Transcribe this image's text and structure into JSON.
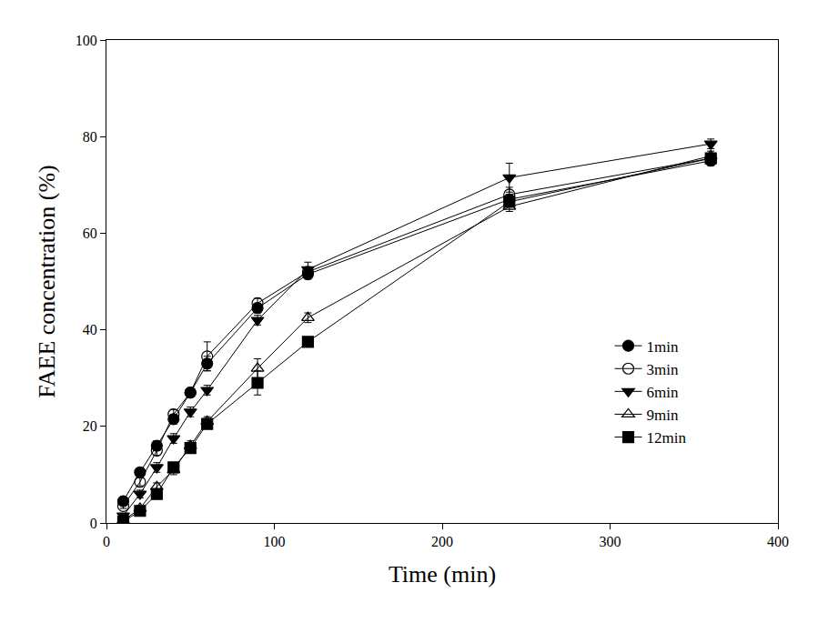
{
  "chart_data": {
    "type": "line",
    "x_label": "Time (min)",
    "y_label": "FAEE concentration (%)",
    "x": [
      10,
      20,
      30,
      40,
      50,
      60,
      90,
      120,
      240,
      360
    ],
    "xlim": [
      0,
      400
    ],
    "xticks": [
      0,
      100,
      200,
      300,
      400
    ],
    "ylim": [
      0,
      100
    ],
    "yticks": [
      0,
      20,
      40,
      60,
      80,
      100
    ],
    "grid": false,
    "legend": "lower right",
    "series": [
      {
        "name": "1min",
        "color": "#000000",
        "marker": "circle",
        "line_style": "solid",
        "values": [
          4.5,
          10.5,
          16,
          21.5,
          27,
          33,
          44.5,
          51.5,
          67,
          75
        ],
        "errors": [
          0.5,
          0.8,
          1,
          1,
          0.8,
          1.5,
          1,
          1,
          1,
          1
        ]
      },
      {
        "name": "3min",
        "color": "#000000",
        "marker": "circle-open",
        "line_style": "solid",
        "values": [
          3.5,
          8.5,
          15,
          22.5,
          27,
          34.5,
          45.5,
          52,
          68,
          75.5
        ],
        "errors": [
          0.5,
          0.8,
          1,
          1,
          0.8,
          3,
          1,
          1,
          1.5,
          1
        ]
      },
      {
        "name": "6min",
        "color": "#000000",
        "marker": "triangle-down",
        "line_style": "solid",
        "values": [
          1.5,
          6,
          11.5,
          17.5,
          23,
          27.5,
          42,
          52.5,
          71.5,
          78.5
        ],
        "errors": [
          0.5,
          0.8,
          1,
          1,
          1,
          1,
          1,
          1.5,
          3,
          1
        ]
      },
      {
        "name": "9min",
        "color": "#000000",
        "marker": "triangle-up-open",
        "line_style": "solid",
        "values": [
          0.5,
          3,
          7.5,
          11,
          16,
          21,
          32,
          42.5,
          65.5,
          76
        ],
        "errors": [
          0.3,
          0.5,
          0.8,
          1,
          1,
          1,
          2,
          1,
          1,
          1
        ]
      },
      {
        "name": "12min",
        "color": "#000000",
        "marker": "square",
        "line_style": "solid",
        "values": [
          0.3,
          2.5,
          6,
          11.5,
          15.5,
          20.5,
          29,
          37.5,
          66.5,
          75.5
        ],
        "errors": [
          0.3,
          0.5,
          0.8,
          1,
          0.8,
          1,
          2.5,
          1,
          1,
          1
        ]
      }
    ]
  }
}
